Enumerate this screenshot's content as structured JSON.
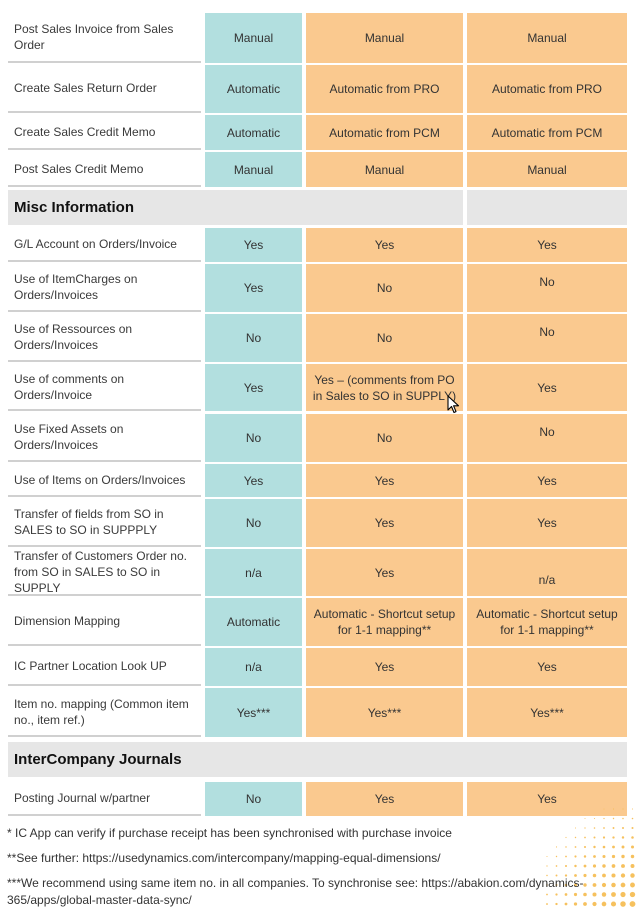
{
  "rows_top": [
    {
      "label": "Post Sales Invoice from Sales Order",
      "a": "Manual",
      "b": "Manual",
      "c": "Manual"
    },
    {
      "label": "Create Sales Return Order",
      "a": "Automatic",
      "b": "Automatic from PRO",
      "c": "Automatic from PRO"
    },
    {
      "label": "Create Sales Credit Memo",
      "a": "Automatic",
      "b": "Automatic from PCM",
      "c": "Automatic from PCM"
    },
    {
      "label": "Post Sales Credit Memo",
      "a": "Manual",
      "b": "Manual",
      "c": "Manual"
    }
  ],
  "misc_section": {
    "title": "Misc Information"
  },
  "rows_misc": [
    {
      "label": "G/L Account on Orders/Invoice",
      "a": "Yes",
      "b": "Yes",
      "c": "Yes"
    },
    {
      "label": "Use of ItemCharges on Orders/Invoices",
      "a": "Yes",
      "b": "No",
      "c": "No"
    },
    {
      "label": "Use of Ressources on Orders/Invoices",
      "a": "No",
      "b": "No",
      "c": "No"
    },
    {
      "label": "Use of comments on Orders/Invoice",
      "a": "Yes",
      "b": "Yes – (comments from PO in Sales to SO in SUPPLY)",
      "c": "Yes"
    },
    {
      "label": "Use Fixed Assets on Orders/Invoices",
      "a": "No",
      "b": "No",
      "c": "No"
    },
    {
      "label": "Use of Items on Orders/Invoices",
      "a": "Yes",
      "b": "Yes",
      "c": "Yes"
    },
    {
      "label": "Transfer of fields from SO in SALES to SO in SUPPPLY",
      "a": "No",
      "b": "Yes",
      "c": "Yes"
    },
    {
      "label": "Transfer of Customers Order no. from SO in SALES to SO in SUPPLY",
      "a": "n/a",
      "b": "Yes",
      "c": "n/a"
    },
    {
      "label": "Dimension Mapping",
      "a": "Automatic",
      "b": "Automatic - Shortcut setup for 1-1 mapping**",
      "c": "Automatic - Shortcut setup for 1-1 mapping**"
    },
    {
      "label": "IC Partner Location Look UP",
      "a": "n/a",
      "b": "Yes",
      "c": "Yes"
    },
    {
      "label": "Item no. mapping (Common item no., item ref.)",
      "a": "Yes***",
      "b": "Yes***",
      "c": "Yes***"
    }
  ],
  "journals_section": {
    "title": "InterCompany Journals"
  },
  "rows_journals": [
    {
      "label": "Posting Journal w/partner",
      "a": "No",
      "b": "Yes",
      "c": "Yes"
    }
  ],
  "footnotes": [
    "* IC App can verify if purchase receipt has been synchronised with purchase invoice",
    "**See further: https://usedynamics.com/intercompany/mapping-equal-dimensions/",
    "***We recommend using same item no. in all companies. To synchronise see: https://abakion.com/dynamics-",
    "365/apps/global-master-data-sync/"
  ],
  "colors": {
    "teal": "#b2dfdf",
    "orange": "#fac98f",
    "section": "#e6e6e6"
  }
}
